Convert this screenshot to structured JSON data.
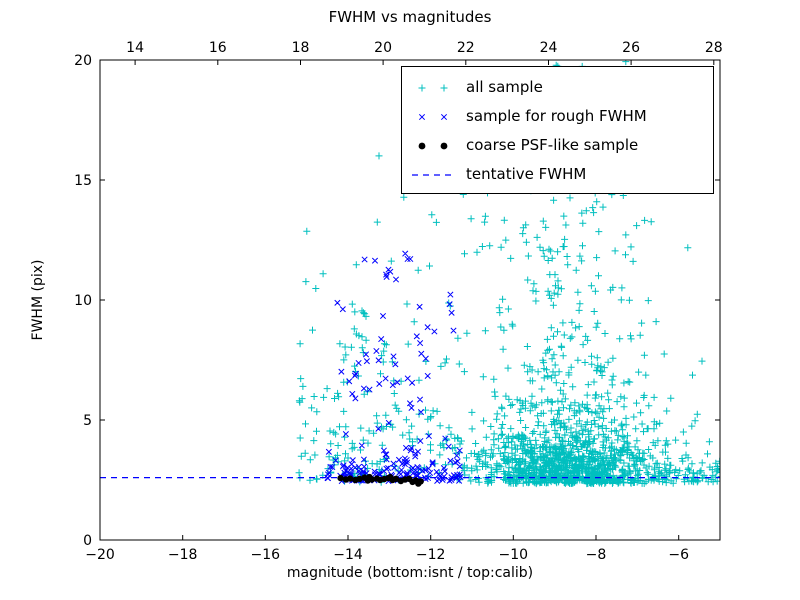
{
  "chart_data": {
    "type": "scatter",
    "title": "FWHM vs magnitudes",
    "xlabel": "magnitude (bottom:isnt / top:calib)",
    "ylabel": "FWHM (pix)",
    "grid": false,
    "background": "#ffffff",
    "axes_color": "#000000",
    "x_axis_bottom": {
      "min": -20,
      "max": -5,
      "ticks": [
        -20,
        -18,
        -16,
        -14,
        -12,
        -10,
        -8,
        -6
      ]
    },
    "x_axis_top": {
      "min": 13.15,
      "max": 28.15,
      "ticks": [
        14,
        16,
        18,
        20,
        22,
        24,
        26,
        28
      ]
    },
    "y_axis": {
      "min": 0,
      "max": 20,
      "ticks": [
        0,
        5,
        10,
        15,
        20
      ]
    },
    "seed": 7,
    "series": [
      {
        "name": "all sample",
        "marker": "plus",
        "color": "#00bfbf",
        "clusters": [
          {
            "count": 1150,
            "x": {
              "dist": "normal",
              "mu": -8.7,
              "sigma": 1.1,
              "min": -11.3,
              "max": -4.92
            },
            "y": {
              "dist": "exp",
              "offset": 2.35,
              "scale": 1.2,
              "max": 19.8
            }
          },
          {
            "count": 260,
            "x": {
              "dist": "normal",
              "mu": -8.9,
              "sigma": 1.3,
              "min": -11.3,
              "max": -5.0
            },
            "y": {
              "dist": "uniform",
              "min": 5.5,
              "max": 20.0
            }
          },
          {
            "count": 210,
            "x": {
              "dist": "uniform",
              "min": -15.2,
              "max": -11.3
            },
            "y": {
              "dist": "exp",
              "offset": 2.4,
              "scale": 3.2,
              "max": 19.9
            }
          },
          {
            "count": 130,
            "x": {
              "dist": "uniform",
              "min": -8.2,
              "max": -4.92
            },
            "y": {
              "dist": "exp",
              "offset": 2.4,
              "scale": 0.5,
              "max": 6.5
            }
          }
        ]
      },
      {
        "name": "sample for rough FWHM",
        "marker": "x",
        "color": "#0000ff",
        "clusters": [
          {
            "count": 140,
            "x": {
              "dist": "uniform",
              "min": -14.5,
              "max": -11.25
            },
            "y": {
              "dist": "exp",
              "offset": 2.45,
              "scale": 0.5,
              "max": 6.0
            }
          },
          {
            "count": 55,
            "x": {
              "dist": "uniform",
              "min": -14.3,
              "max": -11.35
            },
            "y": {
              "dist": "uniform",
              "min": 3.5,
              "max": 12.0
            }
          }
        ]
      },
      {
        "name": "coarse PSF-like sample",
        "marker": "dot",
        "color": "#000000",
        "points": [
          [
            -14.18,
            2.58
          ],
          [
            -14.05,
            2.52
          ],
          [
            -13.95,
            2.56
          ],
          [
            -13.82,
            2.5
          ],
          [
            -13.72,
            2.55
          ],
          [
            -13.6,
            2.6
          ],
          [
            -13.52,
            2.48
          ],
          [
            -13.48,
            2.62
          ],
          [
            -13.42,
            2.52
          ],
          [
            -13.3,
            2.56
          ],
          [
            -13.22,
            2.5
          ],
          [
            -13.12,
            2.54
          ],
          [
            -13.02,
            2.58
          ],
          [
            -12.98,
            2.62
          ],
          [
            -12.92,
            2.5
          ],
          [
            -12.84,
            2.55
          ],
          [
            -12.72,
            2.46
          ],
          [
            -12.62,
            2.52
          ],
          [
            -12.52,
            2.55
          ],
          [
            -12.44,
            2.42
          ],
          [
            -12.36,
            2.48
          ],
          [
            -12.3,
            2.35
          ],
          [
            -12.24,
            2.44
          ]
        ]
      }
    ],
    "hline": {
      "label": "tentative FWHM",
      "y": 2.6,
      "color": "#0000ff",
      "style": "dashed"
    },
    "legend": {
      "position": "upper right",
      "entries": [
        {
          "label": "all sample",
          "marker": "plus",
          "color": "#00bfbf"
        },
        {
          "label": "sample for rough FWHM",
          "marker": "x",
          "color": "#0000ff"
        },
        {
          "label": "coarse PSF-like sample",
          "marker": "dot",
          "color": "#000000"
        },
        {
          "label": "tentative FWHM",
          "marker": "dashed-line",
          "color": "#0000ff"
        }
      ]
    }
  }
}
